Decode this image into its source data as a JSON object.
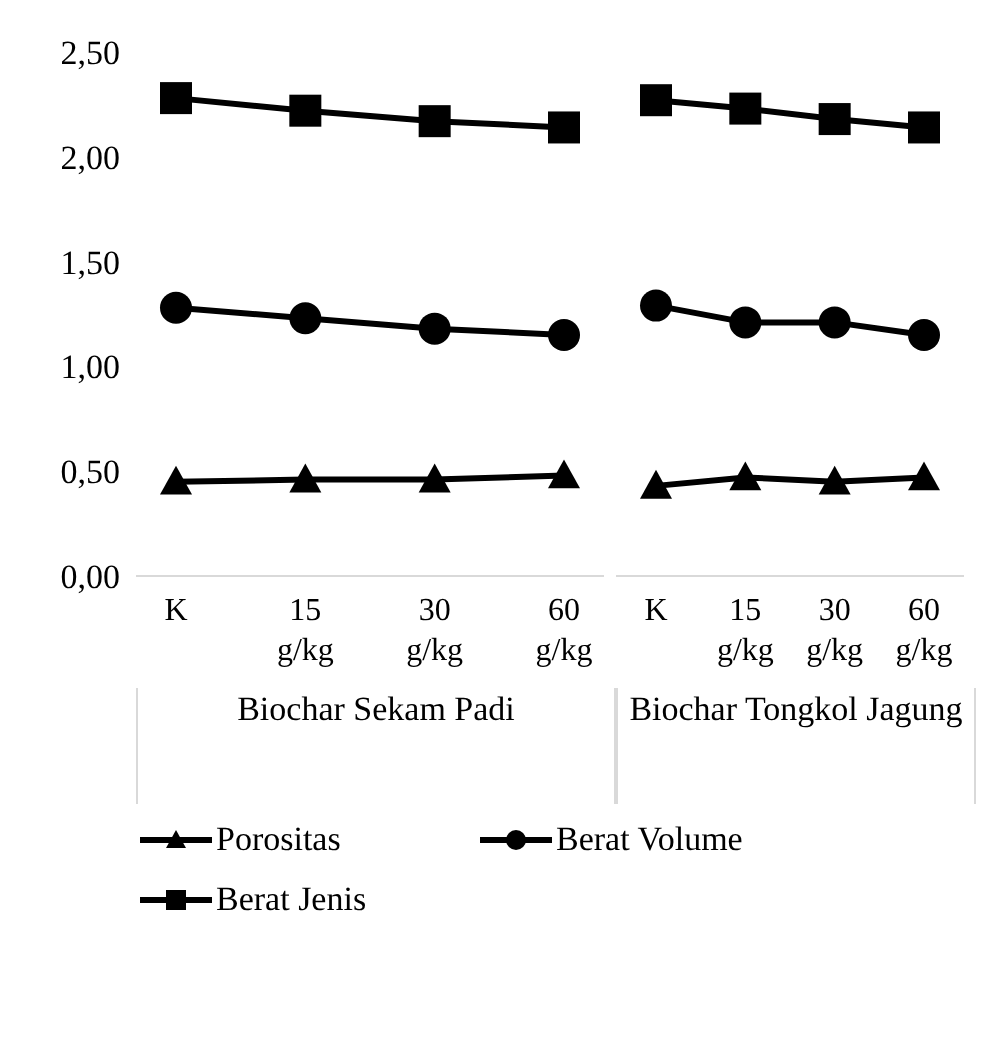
{
  "chart_data": [
    {
      "type": "line",
      "xlabel": "Biochar Sekam Padi",
      "categories": [
        "K",
        "15 g/kg",
        "30 g/kg",
        "60 g/kg"
      ],
      "ylim": [
        0,
        2.5
      ],
      "yticks": [
        {
          "value": 0,
          "label": "0,00"
        },
        {
          "value": 0.5,
          "label": "0,50"
        },
        {
          "value": 1,
          "label": "1,00"
        },
        {
          "value": 1.5,
          "label": "1,50"
        },
        {
          "value": 2,
          "label": "2,00"
        },
        {
          "value": 2.5,
          "label": "2,50"
        }
      ],
      "grid": false,
      "legend": "bottom",
      "line_style": "solid",
      "series": [
        {
          "name": "Porositas",
          "color": "#000000",
          "marker": "triangle",
          "values": [
            0.45,
            0.46,
            0.46,
            0.48
          ]
        },
        {
          "name": "Berat Volume",
          "color": "#000000",
          "marker": "circle",
          "values": [
            1.28,
            1.23,
            1.18,
            1.15
          ]
        },
        {
          "name": "Berat Jenis",
          "color": "#000000",
          "marker": "square",
          "values": [
            2.28,
            2.22,
            2.17,
            2.14
          ]
        }
      ]
    },
    {
      "type": "line",
      "xlabel": "Biochar Tongkol Jagung",
      "categories": [
        "K",
        "15 g/kg",
        "30 g/kg",
        "60 g/kg"
      ],
      "ylim": [
        0,
        2.5
      ],
      "tick_labels": "x",
      "grid": false,
      "legend": "bottom",
      "line_style": "solid",
      "series": [
        {
          "name": "Porositas",
          "color": "#000000",
          "marker": "triangle",
          "values": [
            0.43,
            0.47,
            0.45,
            0.47
          ]
        },
        {
          "name": "Berat Volume",
          "color": "#000000",
          "marker": "circle",
          "values": [
            1.29,
            1.21,
            1.21,
            1.15
          ]
        },
        {
          "name": "Berat Jenis",
          "color": "#000000",
          "marker": "square",
          "values": [
            2.27,
            2.23,
            2.18,
            2.14
          ]
        }
      ]
    }
  ]
}
